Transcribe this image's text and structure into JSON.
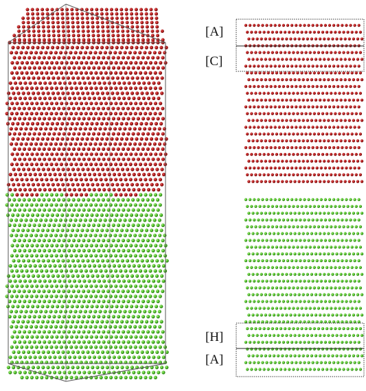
{
  "labels": {
    "top_first": "[A]",
    "top_second": "[C]",
    "bottom_first": "[H]",
    "bottom_second": "[A]"
  },
  "colors": {
    "red_atom": "#b21a1a",
    "red_atom_highlight": "#e86a6a",
    "green_atom": "#4fbf2a",
    "green_atom_highlight": "#b4f08a",
    "box_outline": "#555555",
    "dotted_frame": "#333333"
  }
}
